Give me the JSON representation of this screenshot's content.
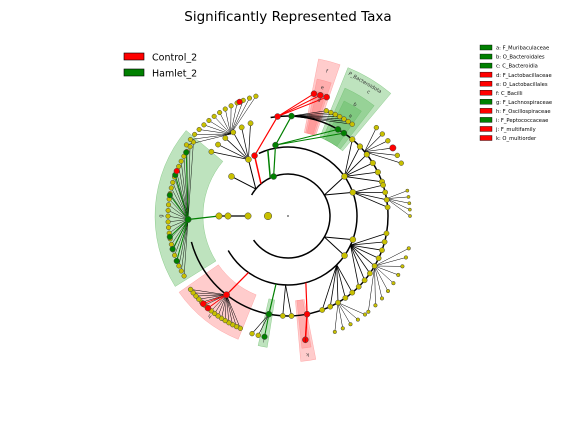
{
  "colors": {
    "control": "#ff0000",
    "hamlet": "#008000",
    "control_shade": "#ff8080",
    "hamlet_shade": "#5cb85c",
    "node_nonsig": "#c8c000",
    "node_edge": "#444444",
    "branch": "#000000"
  },
  "chart_data": {
    "type": "cladogram",
    "title": "Significantly Represented Taxa",
    "groups": [
      {
        "name": "Control_2",
        "color": "#ff0000"
      },
      {
        "name": "Hamlet_2",
        "color": "#008000"
      }
    ],
    "clade_key": [
      {
        "letter": "a",
        "label": "a: F_Muribaculaceae",
        "group": "Hamlet_2"
      },
      {
        "letter": "b",
        "label": "b: O_Bacteroidales",
        "group": "Hamlet_2"
      },
      {
        "letter": "c",
        "label": "c: C_Bacteroidia",
        "group": "Hamlet_2"
      },
      {
        "letter": "d",
        "label": "d: F_Lactobacillaceae",
        "group": "Control_2"
      },
      {
        "letter": "e",
        "label": "e: O_Lactobacillales",
        "group": "Control_2"
      },
      {
        "letter": "f",
        "label": "f: C_Bacilli",
        "group": "Control_2"
      },
      {
        "letter": "g",
        "label": "g: F_Lachnospiraceae",
        "group": "Hamlet_2"
      },
      {
        "letter": "h",
        "label": "h: F_Oscillospiraceae",
        "group": "Control_2"
      },
      {
        "letter": "i",
        "label": "i: F_Peptococcaceae",
        "group": "Hamlet_2"
      },
      {
        "letter": "j",
        "label": "j: F_multifamily",
        "group": "Control_2"
      },
      {
        "letter": "k",
        "label": "k: O_multiorder",
        "group": "Control_2"
      }
    ],
    "phylum_label": "P_Bacteroidota"
  }
}
